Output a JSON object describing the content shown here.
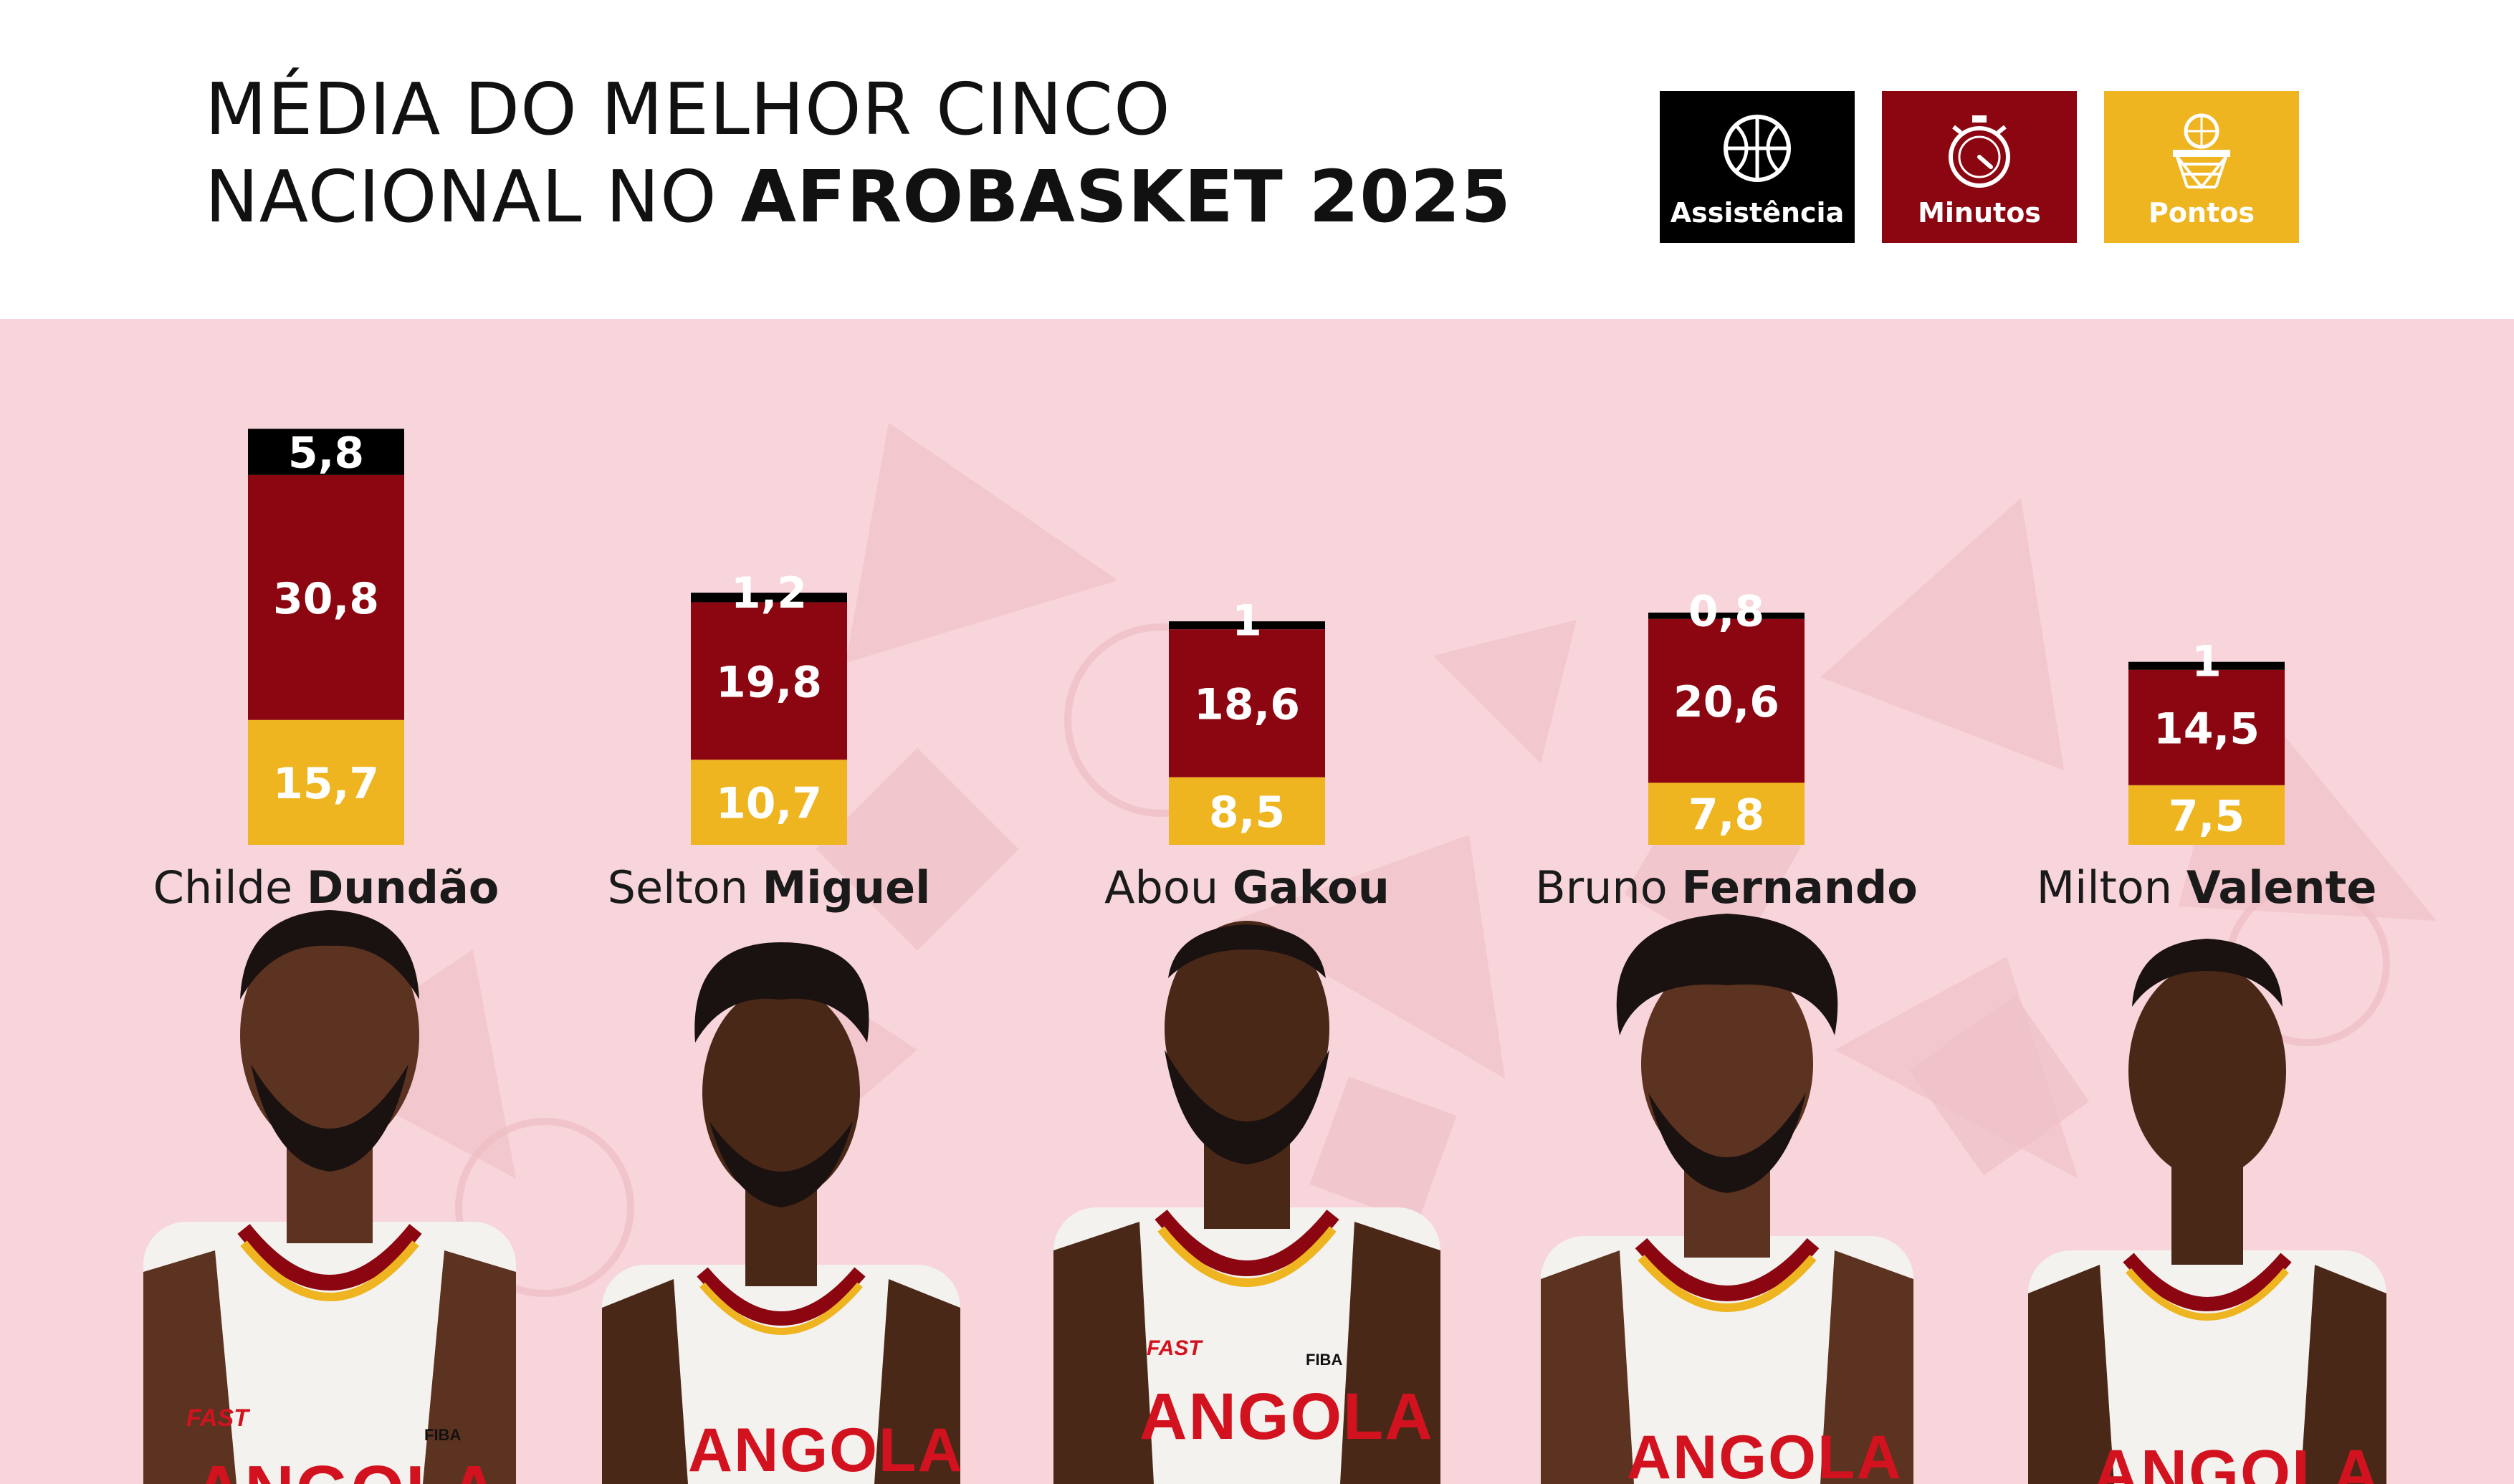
{
  "header": {
    "title_line1": "MÉDIA DO MELHOR CINCO",
    "title_line2_regular": "NACIONAL NO ",
    "title_line2_bold": "AFROBASKET 2025"
  },
  "legend": [
    {
      "label": "Assistência",
      "color": "#000000",
      "icon": "basketball-icon"
    },
    {
      "label": "Minutos",
      "color": "#8b0610",
      "icon": "stopwatch-icon"
    },
    {
      "label": "Pontos",
      "color": "#eeb521",
      "icon": "basketball-hoop-icon"
    }
  ],
  "chart_data": {
    "type": "bar",
    "stacked": true,
    "categories": [
      "Childe Dundão",
      "Selton Miguel",
      "Abou Gakou",
      "Bruno Fernando",
      "Milton Valente"
    ],
    "series": [
      {
        "name": "Pontos",
        "color": "#eeb521",
        "values": [
          15.7,
          10.7,
          8.5,
          7.8,
          7.5
        ],
        "labels": [
          "15,7",
          "10,7",
          "8,5",
          "7,8",
          "7,5"
        ]
      },
      {
        "name": "Minutos",
        "color": "#8b0610",
        "values": [
          30.8,
          19.8,
          18.6,
          20.6,
          14.5
        ],
        "labels": [
          "30,8",
          "19,8",
          "18,6",
          "20,6",
          "14,5"
        ]
      },
      {
        "name": "Assistência",
        "color": "#000000",
        "values": [
          5.8,
          1.2,
          1,
          0.8,
          1
        ],
        "labels": [
          "5,8",
          "1,2",
          "1",
          "0,8",
          "1"
        ]
      }
    ]
  },
  "players": [
    {
      "first_name": "Childe",
      "last_name": "Dundão"
    },
    {
      "first_name": "Selton",
      "last_name": "Miguel"
    },
    {
      "first_name": "Abou",
      "last_name": "Gakou"
    },
    {
      "first_name": "Bruno",
      "last_name": "Fernando"
    },
    {
      "first_name": "Milton",
      "last_name": "Valente"
    }
  ],
  "jersey": {
    "team": "ANGOLA",
    "sponsor": "FAST",
    "badge": "FIBA"
  }
}
